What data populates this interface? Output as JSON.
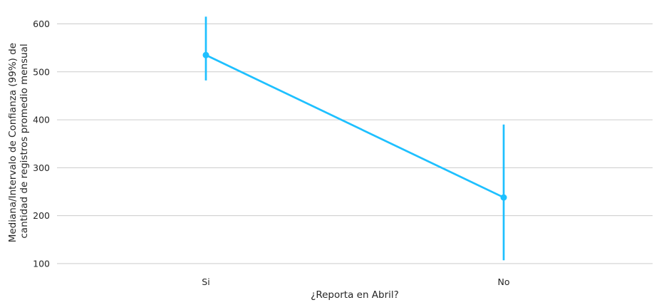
{
  "chart_data": {
    "type": "line",
    "xlabel": "¿Reporta en Abril?",
    "ylabel_lines": [
      "Mediana/Intervalo de Confianza (99%) de",
      "cantidad de registros promedio mensual"
    ],
    "categories": [
      "Si",
      "No"
    ],
    "series": [
      {
        "values": [
          535,
          238
        ],
        "ci_low": [
          482,
          107
        ],
        "ci_high": [
          615,
          390
        ],
        "color": "#1ec0ff"
      }
    ],
    "yticks": [
      100,
      200,
      300,
      400,
      500,
      600
    ],
    "ylim": [
      85,
      632
    ],
    "grid": "horizontal",
    "legend": "none"
  }
}
